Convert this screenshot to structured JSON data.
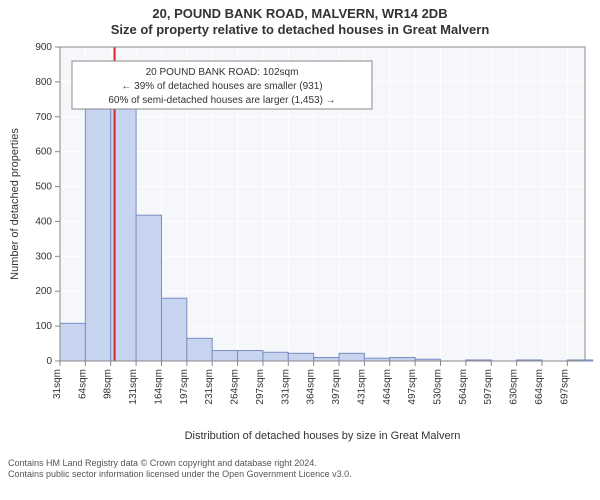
{
  "title_line1": "20, POUND BANK ROAD, MALVERN, WR14 2DB",
  "title_line2": "Size of property relative to detached houses in Great Malvern",
  "x_axis_label": "Distribution of detached houses by size in Great Malvern",
  "y_axis_label": "Number of detached properties",
  "annotation": {
    "line1": "20 POUND BANK ROAD: 102sqm",
    "line2": "← 39% of detached houses are smaller (931)",
    "line3": "60% of semi-detached houses are larger (1,453) →"
  },
  "footer_line1": "Contains HM Land Registry data © Crown copyright and database right 2024.",
  "footer_line2": "Contains public sector information licensed under the Open Government Licence v3.0.",
  "histogram": {
    "type": "histogram",
    "categories": [
      "31sqm",
      "64sqm",
      "98sqm",
      "131sqm",
      "164sqm",
      "197sqm",
      "231sqm",
      "264sqm",
      "297sqm",
      "331sqm",
      "364sqm",
      "397sqm",
      "431sqm",
      "464sqm",
      "497sqm",
      "530sqm",
      "564sqm",
      "597sqm",
      "630sqm",
      "664sqm",
      "697sqm"
    ],
    "values": [
      108,
      745,
      748,
      418,
      180,
      65,
      30,
      30,
      25,
      22,
      10,
      22,
      8,
      10,
      5,
      0,
      3,
      0,
      3,
      0,
      3
    ],
    "bar_fill": "#c6d4ef",
    "bar_stroke": "#7b8ec4",
    "marker_line_color": "#d62728",
    "marker_x_value": 102,
    "ylim": [
      0,
      900
    ],
    "ytick_step": 100,
    "plot_bg": "#f5f7fb",
    "grid_color": "#ffffff",
    "border_color": "#888888",
    "title_fontsize": 13,
    "axis_label_fontsize": 11,
    "tick_fontsize": 10,
    "annotation_fontsize": 10,
    "x_start": 31,
    "x_end": 714,
    "bin_width": 33
  }
}
